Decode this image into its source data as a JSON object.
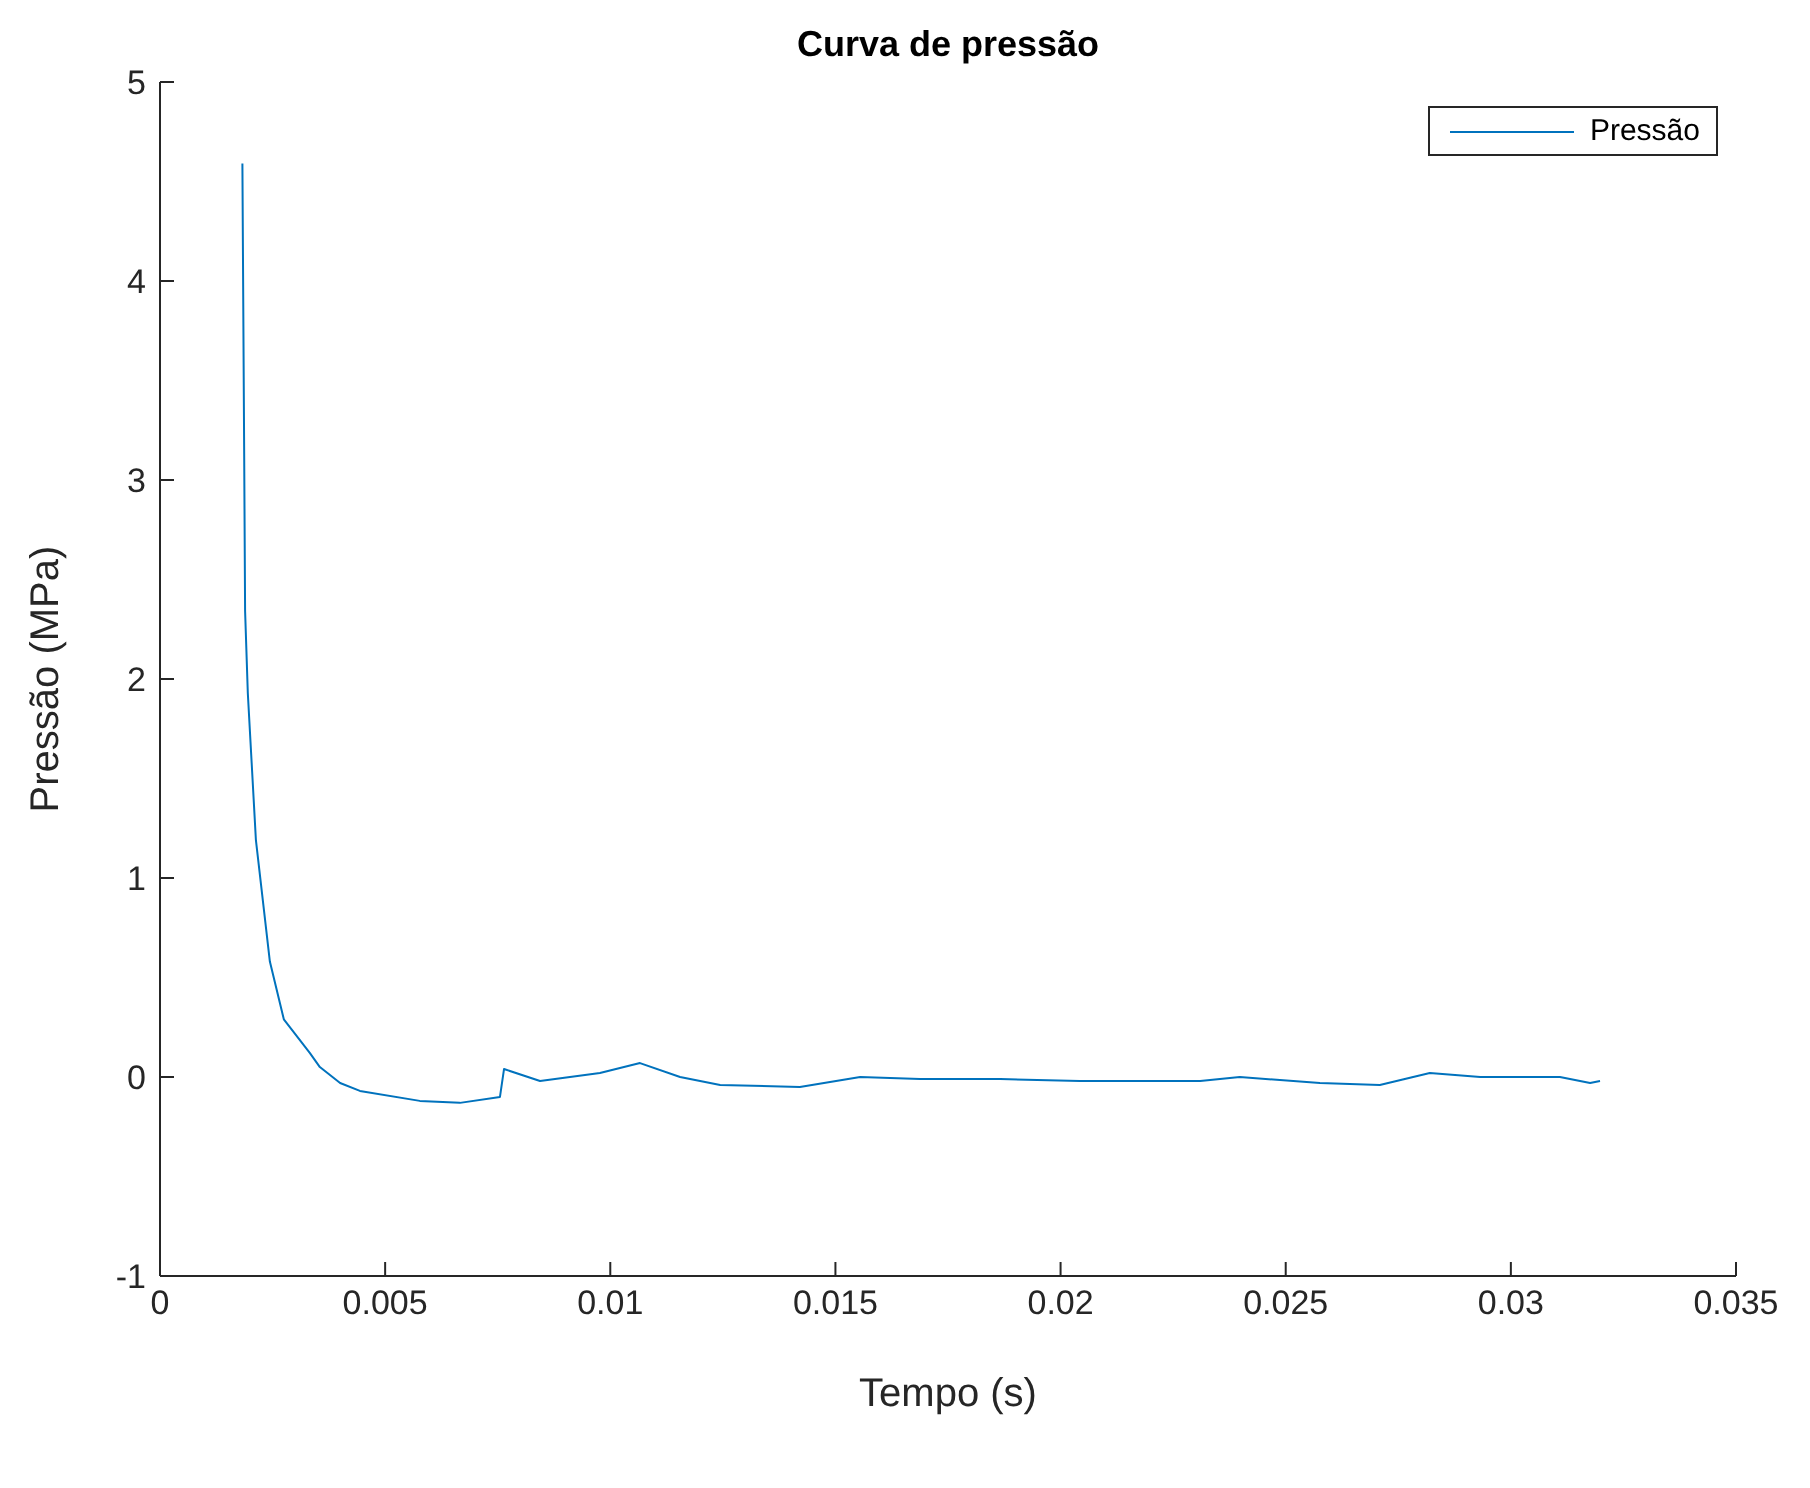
{
  "chart_data": {
    "type": "line",
    "title": "Curva de pressão",
    "xlabel": "Tempo (s)",
    "ylabel": "Pressão (MPa)",
    "xlim": [
      0,
      0.035
    ],
    "xticks": [
      0,
      0.005,
      0.01,
      0.015,
      0.02,
      0.025,
      0.03,
      0.035
    ],
    "ylim": [
      -1,
      5
    ],
    "yticks": [
      -1,
      0,
      1,
      2,
      3,
      4,
      5
    ],
    "grid": false,
    "legend": "top right",
    "marker": "none",
    "line_style": "solid",
    "series": [
      {
        "name": "Pressão",
        "color": "#0072bd",
        "x": [
          0.00183,
          0.00187,
          0.00189,
          0.00195,
          0.00213,
          0.00244,
          0.00275,
          0.00333,
          0.00355,
          0.004,
          0.00444,
          0.00577,
          0.00666,
          0.00755,
          0.00764,
          0.00844,
          0.00977,
          0.01066,
          0.01155,
          0.01244,
          0.01421,
          0.01555,
          0.01688,
          0.01866,
          0.02043,
          0.0231,
          0.02398,
          0.02576,
          0.02709,
          0.0282,
          0.02932,
          0.03109,
          0.03176,
          0.03198
        ],
        "values": [
          4.59,
          3.11,
          2.34,
          1.93,
          1.19,
          0.58,
          0.29,
          0.12,
          0.05,
          -0.03,
          -0.07,
          -0.12,
          -0.13,
          -0.1,
          0.04,
          -0.02,
          0.02,
          0.07,
          0,
          -0.04,
          -0.05,
          0,
          -0.01,
          -0.01,
          -0.02,
          -0.02,
          0,
          -0.03,
          -0.04,
          0.02,
          0,
          0,
          -0.03,
          -0.02
        ]
      }
    ]
  }
}
